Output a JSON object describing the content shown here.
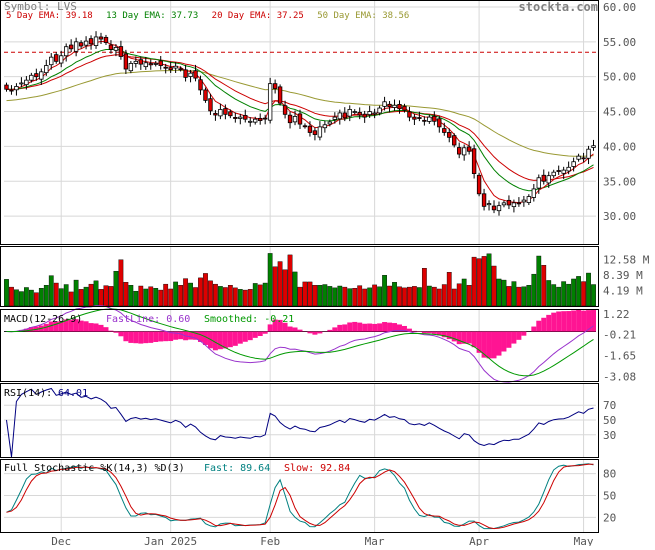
{
  "header": {
    "symbol_label": "Symbol: LVS",
    "watermark": "stockta.com"
  },
  "legend": [
    {
      "label": "5 Day EMA: 39.18",
      "color": "#cc0000"
    },
    {
      "label": "13 Day EMA: 37.73",
      "color": "#008000"
    },
    {
      "label": "20 Day EMA: 37.25",
      "color": "#cc0000"
    },
    {
      "label": "50 Day EMA: 38.56",
      "color": "#999933"
    }
  ],
  "colors": {
    "up": "#008000",
    "down": "#dd0000",
    "ema5": "#cc0000",
    "ema13": "#008000",
    "ema20": "#cc0000",
    "ema50": "#999933",
    "resistance": "#cc0000",
    "macd_hist": "#ff1493",
    "macd_fast": "#9933cc",
    "macd_slow": "#009900",
    "rsi": "#000080",
    "stoch_fast": "#008080",
    "stoch_slow": "#cc0000",
    "grid": "#d8d8d8"
  },
  "panels": {
    "macd": {
      "title": "MACD(12-26-9)",
      "fast_label": "FastLine: 0.60",
      "smooth_label": "Smoothed: -0.21"
    },
    "rsi": {
      "title": "RSI(14):",
      "value_label": "64.01"
    },
    "stoch": {
      "title": "Full Stochastic %K(14,3) %D(3)",
      "fast_label": "Fast: 89.64",
      "slow_label": "Slow: 92.84"
    }
  },
  "chart_data": [
    {
      "type": "candlestick",
      "name": "price",
      "ylim": [
        26,
        61
      ],
      "yticks": [
        "60.00",
        "55.00",
        "50.00",
        "45.00",
        "40.00",
        "35.00",
        "30.00"
      ],
      "ytick_values": [
        60,
        55,
        50,
        45,
        40,
        35,
        30
      ],
      "resistance_level": 53.5,
      "xticks": [
        "Dec",
        "Jan 2025",
        "Feb",
        "Mar",
        "Apr",
        "May"
      ],
      "closes": [
        48.2,
        48.0,
        48.6,
        49.1,
        49.5,
        50.2,
        50.0,
        50.7,
        51.6,
        52.8,
        52.2,
        53.0,
        54.3,
        54.0,
        55.0,
        54.4,
        55.1,
        54.7,
        55.7,
        55.4,
        54.9,
        53.9,
        54.2,
        52.9,
        51.1,
        51.9,
        52.2,
        51.8,
        52.0,
        51.7,
        51.9,
        51.6,
        51.3,
        51.0,
        51.5,
        51.1,
        49.9,
        50.5,
        49.8,
        48.1,
        46.6,
        45.1,
        44.5,
        45.3,
        44.6,
        44.4,
        44.0,
        44.2,
        43.9,
        43.6,
        43.9,
        43.7,
        44.0,
        49.0,
        48.3,
        46.2,
        44.6,
        43.4,
        44.3,
        43.2,
        42.9,
        42.0,
        41.7,
        42.8,
        43.1,
        43.5,
        44.2,
        44.8,
        44.1,
        45.3,
        45.0,
        44.5,
        44.2,
        45.0,
        44.8,
        45.5,
        46.4,
        45.7,
        45.9,
        45.4,
        45.2,
        44.2,
        43.9,
        44.1,
        43.7,
        44.2,
        43.6,
        42.8,
        42.0,
        41.3,
        40.2,
        38.9,
        39.8,
        39.3,
        36.1,
        33.2,
        31.4,
        31.8,
        30.9,
        31.5,
        31.9,
        31.6,
        31.9,
        31.8,
        32.3,
        32.8,
        33.9,
        35.5,
        35.0,
        35.8,
        36.3,
        36.5,
        36.6,
        37.0,
        37.8,
        38.6,
        38.3,
        39.6,
        40.1
      ]
    },
    {
      "type": "bar",
      "name": "volume",
      "yticks": [
        "12.58 M",
        "8.39 M",
        "4.19 M"
      ],
      "ytick_values": [
        12.58,
        8.39,
        4.19
      ],
      "ylim": [
        0,
        16.2
      ],
      "values": [
        7.2,
        5.1,
        4.4,
        3.9,
        5.0,
        4.3,
        3.6,
        4.8,
        5.6,
        8.2,
        6.2,
        4.7,
        5.8,
        3.8,
        7.0,
        4.5,
        5.1,
        5.9,
        6.8,
        4.5,
        5.5,
        5.3,
        9.4,
        12.5,
        6.4,
        5.6,
        4.0,
        5.4,
        4.6,
        5.2,
        4.8,
        4.3,
        5.9,
        4.6,
        6.5,
        5.6,
        7.4,
        6.2,
        5.0,
        7.6,
        8.8,
        6.8,
        5.9,
        5.3,
        5.0,
        5.6,
        4.9,
        4.5,
        4.3,
        4.5,
        6.1,
        5.7,
        6.2,
        14.2,
        10.6,
        12.0,
        9.8,
        13.8,
        9.2,
        5.1,
        6.5,
        6.5,
        5.6,
        5.6,
        5.8,
        5.3,
        4.9,
        5.4,
        5.1,
        4.7,
        4.8,
        5.5,
        4.6,
        4.9,
        5.7,
        5.2,
        8.3,
        5.4,
        6.4,
        5.2,
        4.9,
        5.1,
        5.3,
        5.0,
        10.2,
        5.4,
        5.1,
        4.6,
        5.8,
        9.1,
        4.6,
        6.0,
        7.3,
        5.6,
        13.2,
        12.8,
        13.4,
        14.1,
        10.8,
        7.3,
        7.0,
        5.3,
        6.6,
        5.1,
        5.2,
        5.6,
        8.6,
        13.5,
        11.0,
        6.9,
        5.8,
        5.1,
        6.6,
        5.9,
        7.3,
        8.0,
        6.6,
        8.9,
        5.8
      ]
    },
    {
      "type": "line",
      "name": "macd",
      "yticks": [
        "1.22",
        "-0.21",
        "-1.65",
        "-3.08"
      ],
      "ytick_values": [
        1.22,
        -0.21,
        -1.65,
        -3.08
      ],
      "ylim": [
        -3.4,
        1.55
      ]
    },
    {
      "type": "line",
      "name": "rsi",
      "yticks": [
        "70",
        "50",
        "30"
      ],
      "ytick_values": [
        70,
        50,
        30
      ],
      "ylim": [
        0,
        100
      ]
    },
    {
      "type": "line",
      "name": "stochastic",
      "yticks": [
        "80",
        "50",
        "20"
      ],
      "ytick_values": [
        80,
        50,
        20
      ],
      "ylim": [
        0,
        100
      ]
    }
  ]
}
